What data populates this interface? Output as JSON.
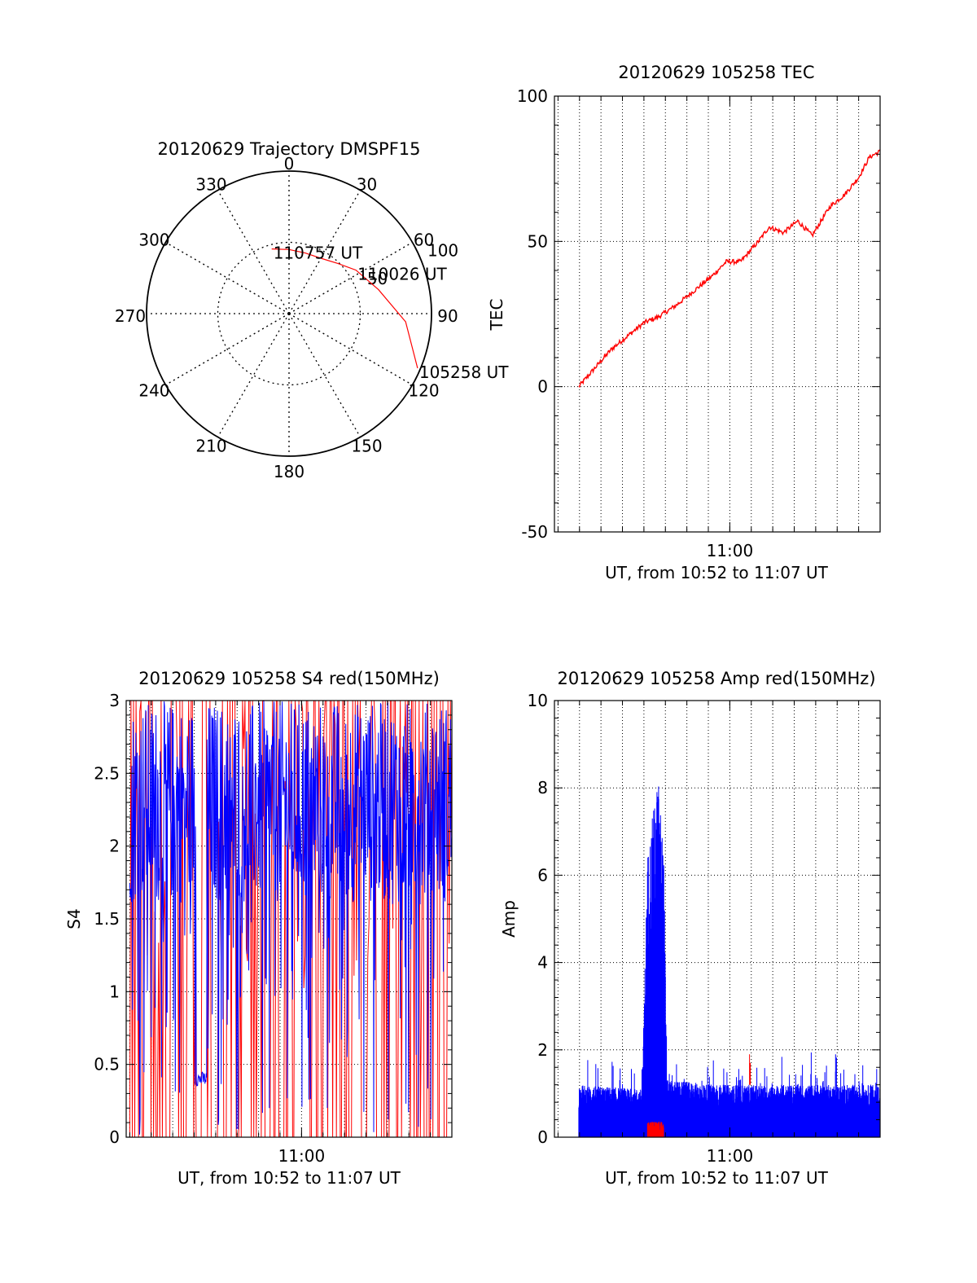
{
  "colors": {
    "red": "#ff0000",
    "blue": "#0000ff",
    "axis": "#000000",
    "grid": "#000000"
  },
  "chart_data": [
    {
      "id": "polar",
      "type": "polar",
      "title": "20120629 Trajectory DMSPF15",
      "azimuth_labels": [
        "0",
        "30",
        "60",
        "90",
        "120",
        "150",
        "180",
        "210",
        "240",
        "270",
        "300",
        "330"
      ],
      "radial_labels": [
        "50",
        "100"
      ],
      "grid": true,
      "series": [
        {
          "color": "red",
          "points": [
            [
              113,
              98
            ],
            [
              94,
              82
            ],
            [
              75,
              65
            ],
            [
              57,
              56
            ],
            [
              44,
              49
            ],
            [
              31,
              45
            ],
            [
              15,
              44
            ],
            [
              0,
              45
            ],
            [
              -15,
              47
            ]
          ]
        }
      ],
      "annotations": [
        {
          "text": "105258 UT",
          "az": 113,
          "zen": 98
        },
        {
          "text": "110026 UT",
          "az": 57,
          "zen": 56
        },
        {
          "text": "110757 UT",
          "az": -15,
          "zen": 47
        }
      ]
    },
    {
      "id": "tec",
      "type": "line",
      "title": "20120629 105258 TEC",
      "xlabel": "UT, from 10:52 to 11:07 UT",
      "ylabel": "TEC",
      "xlim": [
        "10:51:50",
        "11:07:00"
      ],
      "ylim": [
        -50,
        100
      ],
      "xticks": [
        {
          "at": "11:00",
          "label": "11:00"
        }
      ],
      "yticks": [
        -50,
        0,
        50,
        100
      ],
      "grid": true,
      "series": [
        {
          "color": "red",
          "x": [
            "10:52:58",
            "10:53:40",
            "10:54:30",
            "10:55:20",
            "10:56:00",
            "10:56:40",
            "10:57:30",
            "10:58:20",
            "10:59:10",
            "10:59:50",
            "11:00:30",
            "11:01:20",
            "11:01:50",
            "11:02:30",
            "11:03:10",
            "11:03:50",
            "11:04:40",
            "11:05:20",
            "11:06:00",
            "11:06:30",
            "11:07:00"
          ],
          "y": [
            0,
            6,
            13,
            18,
            22,
            24,
            28,
            33,
            38,
            43,
            43,
            50,
            55,
            53,
            57,
            52,
            62,
            66,
            72,
            79,
            81
          ]
        }
      ]
    },
    {
      "id": "s4",
      "type": "line",
      "title": "20120629 105258 S4 red(150MHz)",
      "xlabel": "UT, from 10:52 to 11:07 UT",
      "ylabel": "S4",
      "xlim": [
        "10:51:50",
        "11:07:00"
      ],
      "ylim": [
        0,
        3
      ],
      "xticks": [
        {
          "at": "11:00",
          "label": "11:00"
        }
      ],
      "yticks": [
        "0",
        "0.5",
        "1",
        "1.5",
        "2",
        "2.5",
        "3"
      ],
      "grid": true,
      "series": [
        {
          "color": "red",
          "description_x_range": [
            "10:52:00",
            "11:07:00"
          ],
          "y_range": [
            0,
            3
          ]
        },
        {
          "color": "blue",
          "description_x_range": [
            "10:52:00",
            "11:07:00"
          ],
          "y_range": [
            0,
            3
          ]
        }
      ]
    },
    {
      "id": "amp",
      "type": "line",
      "title": "20120629 105258 Amp red(150MHz)",
      "xlabel": "UT, from 10:52 to 11:07 UT",
      "ylabel": "Amp",
      "xlim": [
        "10:51:50",
        "11:07:00"
      ],
      "ylim": [
        0,
        10
      ],
      "xticks": [
        {
          "at": "11:00",
          "label": "11:00"
        }
      ],
      "yticks": [
        0,
        2,
        4,
        6,
        8,
        10
      ],
      "grid": true,
      "series": [
        {
          "color": "blue",
          "x": [
            "10:52:58",
            "10:55:55",
            "10:56:10",
            "10:56:40",
            "10:56:55",
            "10:57:05",
            "10:59:30",
            "11:07:00"
          ],
          "y": [
            1.2,
            1.1,
            6.5,
            8.3,
            6.6,
            1.3,
            1.2,
            1.2
          ]
        },
        {
          "color": "red",
          "x": [
            "10:56:10",
            "10:56:55",
            "11:00:55"
          ],
          "y": [
            0.3,
            0.3,
            1.9
          ]
        }
      ]
    }
  ]
}
